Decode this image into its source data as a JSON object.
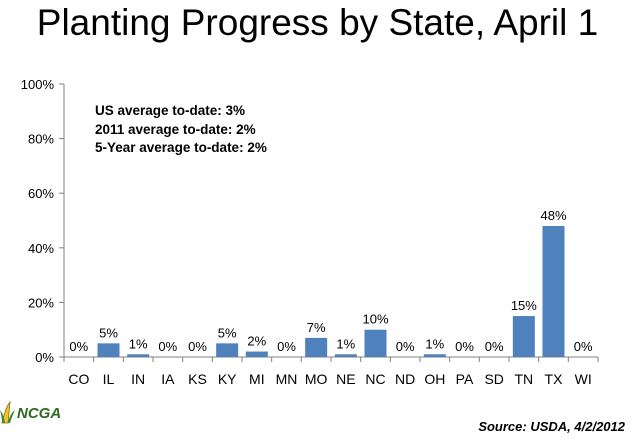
{
  "title": "Planting Progress by State, April 1",
  "annotations": [
    "US average to-date: 3%",
    "2011 average to-date: 2%",
    "5-Year average to-date: 2%"
  ],
  "logo_text": "NCGA",
  "source": "Source: USDA, 4/2/2012",
  "colors": {
    "bar": "#4F81BD",
    "axis": "#808080",
    "grid": "#bfbfbf"
  },
  "chart_data": {
    "type": "bar",
    "title": "Planting Progress by State, April 1",
    "categories": [
      "CO",
      "IL",
      "IN",
      "IA",
      "KS",
      "KY",
      "MI",
      "MN",
      "MO",
      "NE",
      "NC",
      "ND",
      "OH",
      "PA",
      "SD",
      "TN",
      "TX",
      "WI"
    ],
    "values": [
      0,
      5,
      1,
      0,
      0,
      5,
      2,
      0,
      7,
      1,
      10,
      0,
      1,
      0,
      0,
      15,
      48,
      0
    ],
    "data_labels": [
      "0%",
      "5%",
      "1%",
      "0%",
      "0%",
      "5%",
      "2%",
      "0%",
      "7%",
      "1%",
      "10%",
      "0%",
      "1%",
      "0%",
      "0%",
      "15%",
      "48%",
      "0%"
    ],
    "ylim": [
      0,
      100
    ],
    "yticks": [
      0,
      20,
      40,
      60,
      80,
      100
    ],
    "ytick_labels": [
      "0%",
      "20%",
      "40%",
      "60%",
      "80%",
      "100%"
    ],
    "xlabel": "",
    "ylabel": "",
    "grid": false,
    "legend": "none"
  }
}
